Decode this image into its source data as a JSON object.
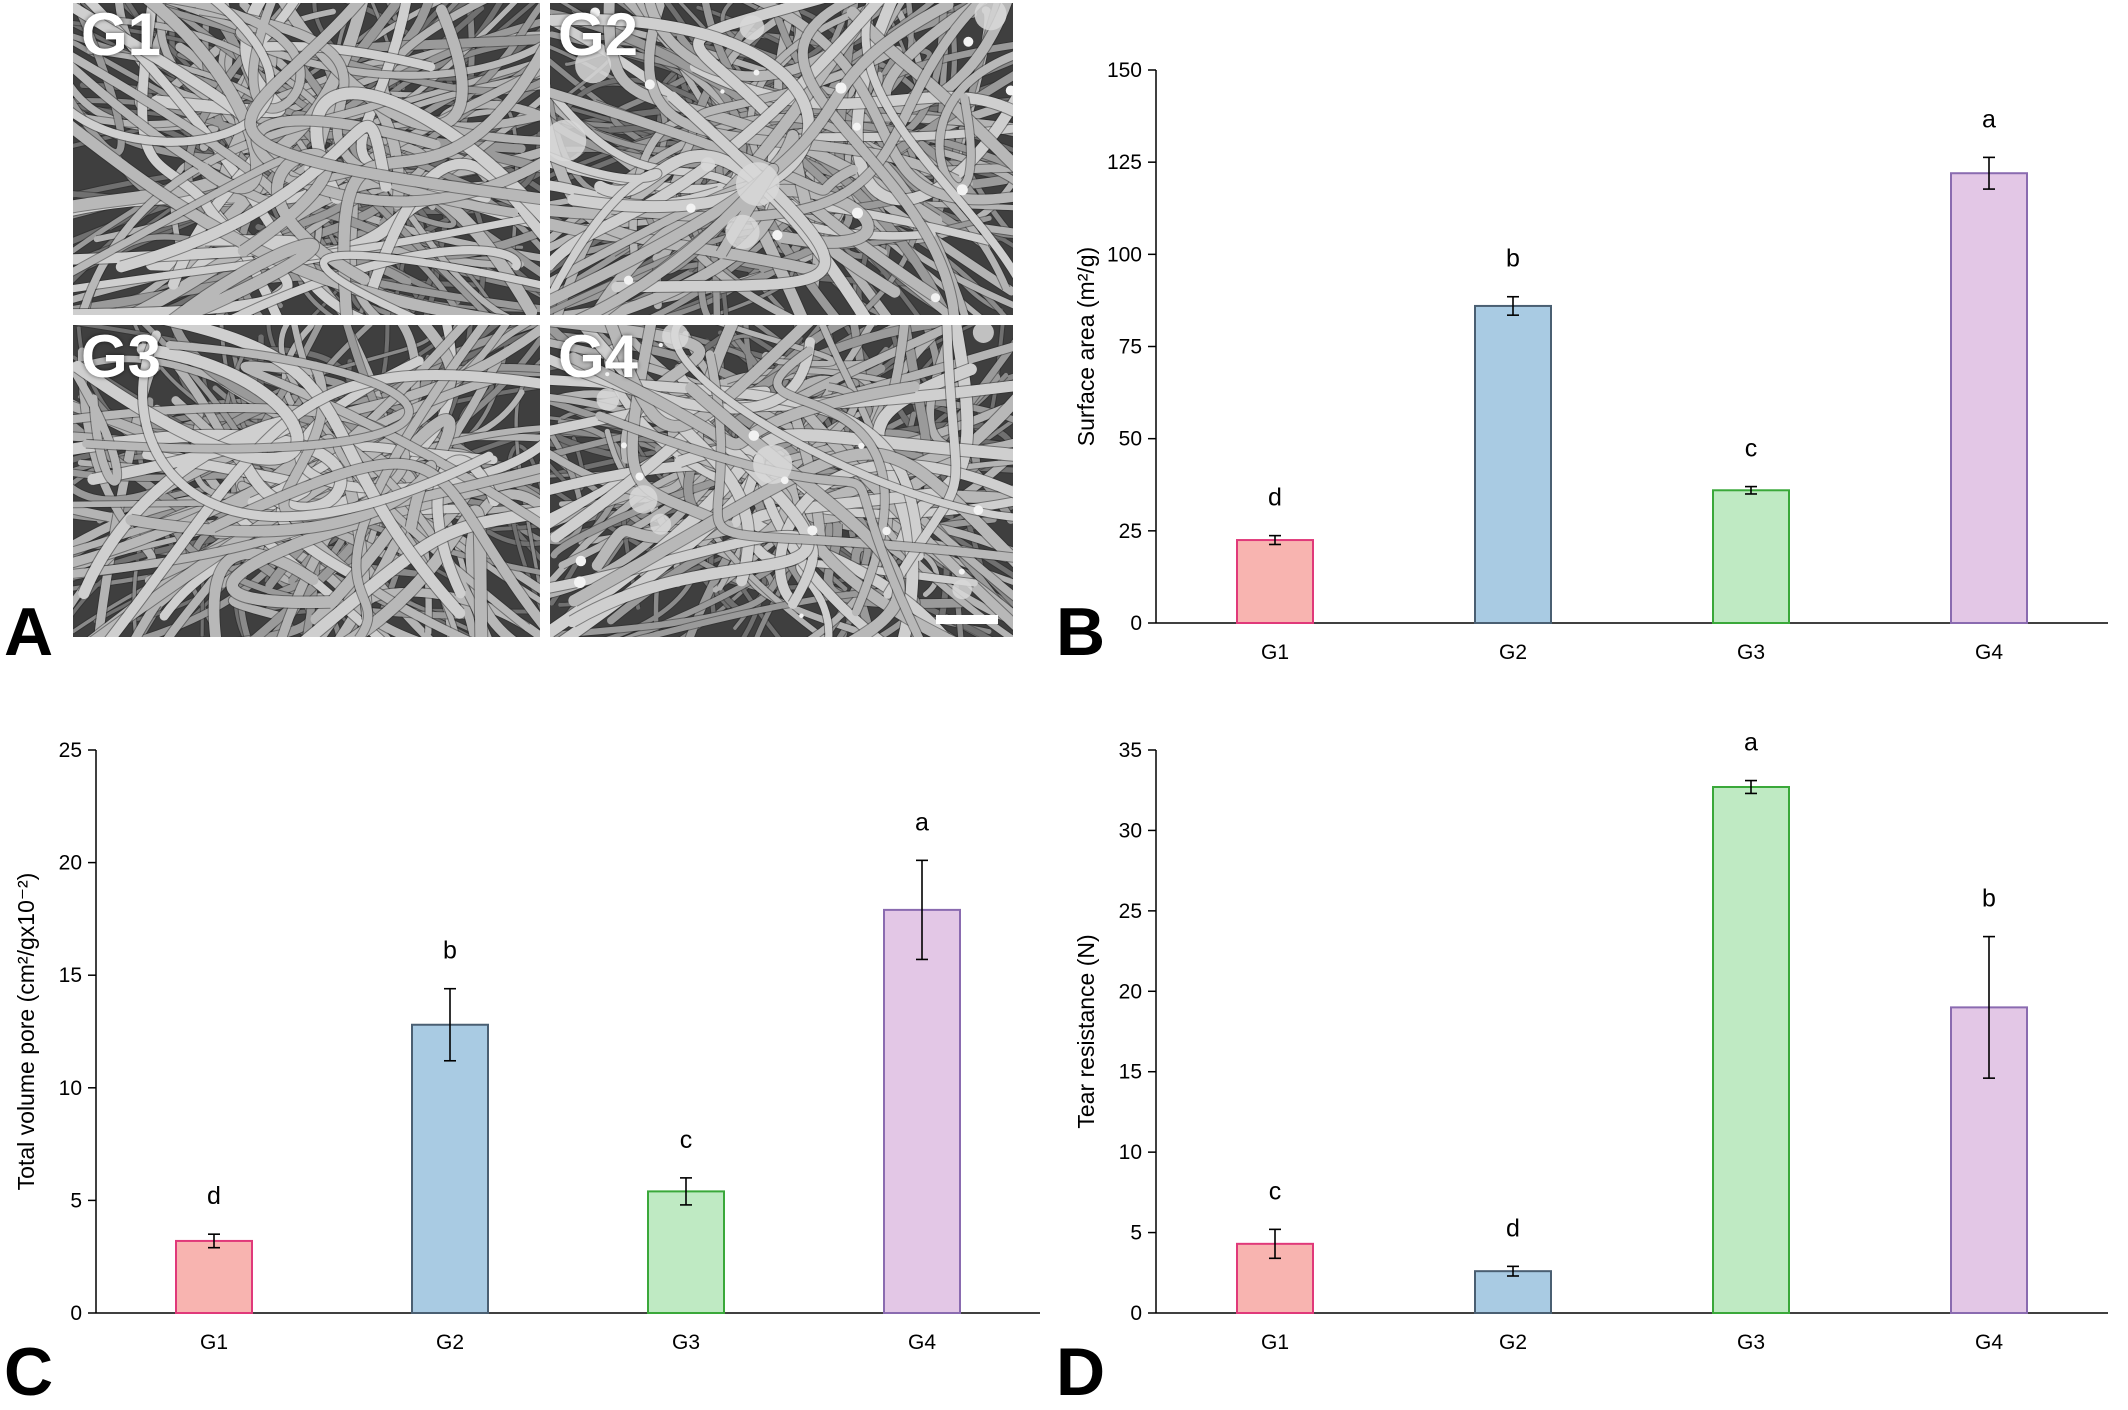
{
  "panels": {
    "A": "A",
    "B": "B",
    "C": "C",
    "D": "D"
  },
  "micrographs": [
    {
      "label": "G1"
    },
    {
      "label": "G2"
    },
    {
      "label": "G3"
    },
    {
      "label": "G4"
    }
  ],
  "colors": {
    "G1_fill": "#f8b4b0",
    "G1_stroke": "#e0397a",
    "G2_fill": "#a9cbe3",
    "G2_stroke": "#4a5f72",
    "G3_fill": "#bfeac3",
    "G3_stroke": "#3aa83a",
    "G4_fill": "#e3c7e6",
    "G4_stroke": "#8a6bb0"
  },
  "chart_data": [
    {
      "panel": "B",
      "type": "bar",
      "categories": [
        "G1",
        "G2",
        "G3",
        "G4"
      ],
      "values": [
        22.5,
        86,
        36,
        122
      ],
      "errors": [
        1.2,
        2.5,
        1.0,
        4.3
      ],
      "annotations": [
        "d",
        "b",
        "c",
        "a"
      ],
      "title": "",
      "xlabel": "",
      "ylabel": "Surface area (m²/g)",
      "ylim": [
        0,
        150
      ],
      "yticks": [
        0,
        25,
        50,
        75,
        100,
        125,
        150
      ],
      "grid": false
    },
    {
      "panel": "C",
      "type": "bar",
      "categories": [
        "G1",
        "G2",
        "G3",
        "G4"
      ],
      "values": [
        3.2,
        12.8,
        5.4,
        17.9
      ],
      "errors": [
        0.3,
        1.6,
        0.6,
        2.2
      ],
      "annotations": [
        "d",
        "b",
        "c",
        "a"
      ],
      "title": "",
      "xlabel": "",
      "ylabel": "Total volume pore (cm²/gx10⁻²)",
      "ylim": [
        0,
        25
      ],
      "yticks": [
        0,
        5,
        10,
        15,
        20,
        25
      ],
      "grid": false
    },
    {
      "panel": "D",
      "type": "bar",
      "categories": [
        "G1",
        "G2",
        "G3",
        "G4"
      ],
      "values": [
        4.3,
        2.6,
        32.7,
        19.0
      ],
      "errors": [
        0.9,
        0.3,
        0.4,
        4.4
      ],
      "annotations": [
        "c",
        "d",
        "a",
        "b"
      ],
      "title": "",
      "xlabel": "",
      "ylabel": "Tear resistance (N)",
      "ylim": [
        0,
        35
      ],
      "yticks": [
        0,
        5,
        10,
        15,
        20,
        25,
        30,
        35
      ],
      "grid": false
    }
  ]
}
